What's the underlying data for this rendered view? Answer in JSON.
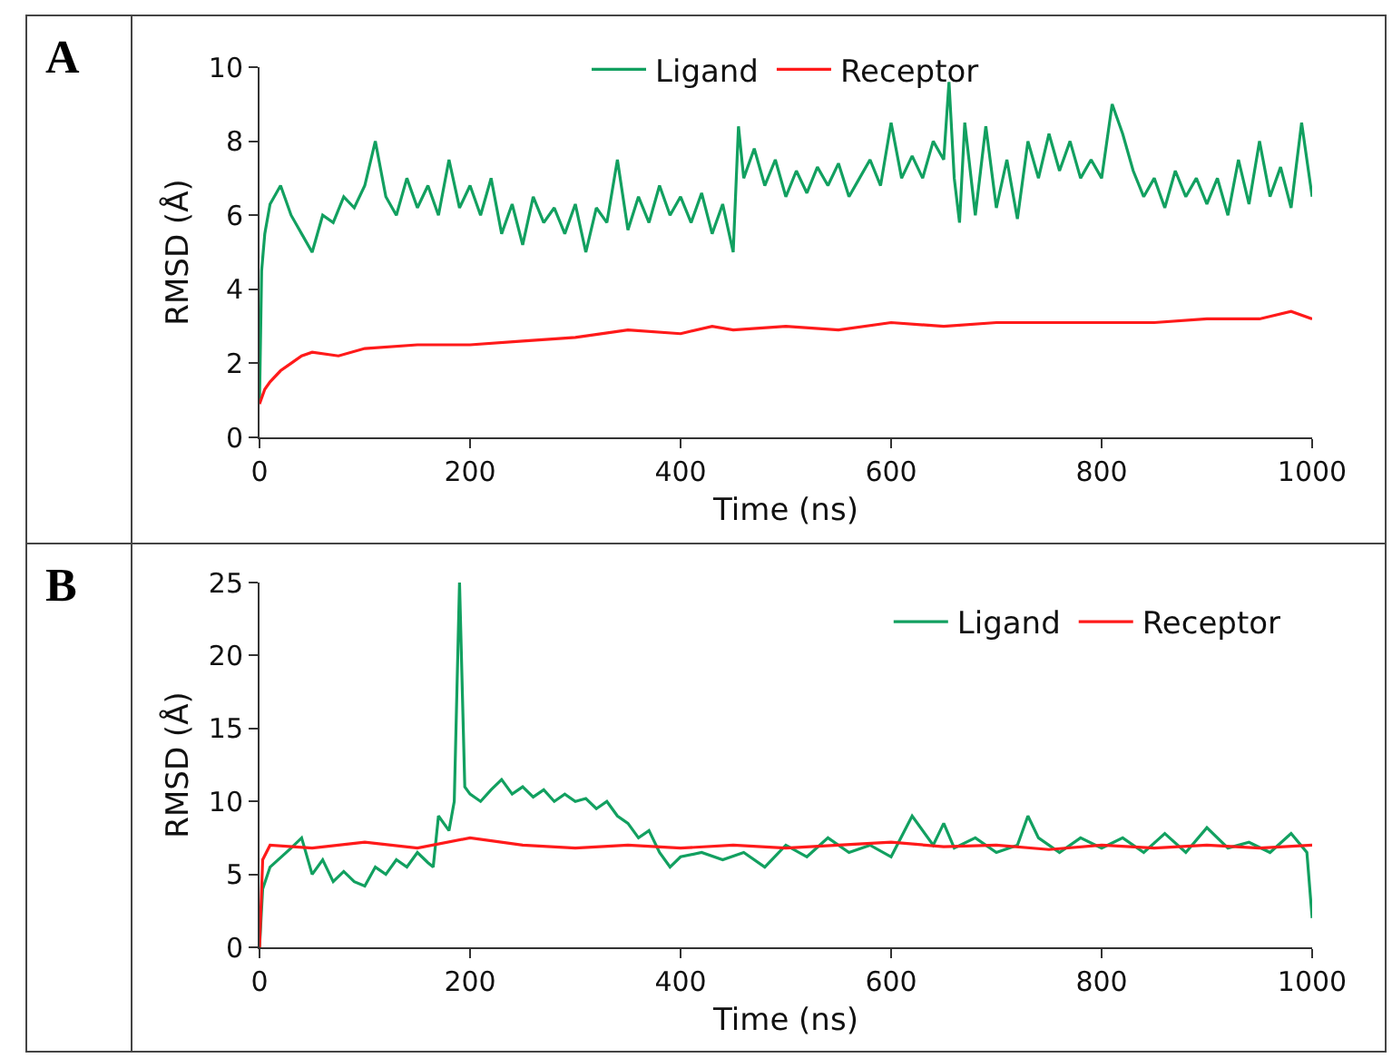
{
  "chart_data": [
    {
      "type": "line",
      "title": "A",
      "xlabel": "Time (ns)",
      "ylabel": "RMSD (Å)",
      "xlim": [
        0,
        1000
      ],
      "xticks": [
        0,
        200,
        400,
        600,
        800,
        1000
      ],
      "ylim": [
        0,
        10
      ],
      "yticks": [
        0,
        2,
        4,
        6,
        8,
        10
      ],
      "grid": false,
      "legend": "top",
      "marker": "none",
      "line_style": "solid",
      "series": [
        {
          "name": "Ligand",
          "color": "#12a060",
          "x": [
            0,
            2,
            5,
            10,
            20,
            30,
            40,
            50,
            60,
            70,
            80,
            90,
            100,
            110,
            120,
            130,
            140,
            150,
            160,
            170,
            180,
            190,
            200,
            210,
            220,
            230,
            240,
            250,
            260,
            270,
            280,
            290,
            300,
            310,
            320,
            330,
            340,
            350,
            360,
            370,
            380,
            390,
            400,
            410,
            420,
            430,
            440,
            450,
            455,
            460,
            470,
            480,
            490,
            500,
            510,
            520,
            530,
            540,
            550,
            560,
            570,
            580,
            590,
            600,
            610,
            620,
            630,
            640,
            650,
            655,
            660,
            665,
            670,
            680,
            690,
            700,
            710,
            720,
            730,
            740,
            750,
            760,
            770,
            780,
            790,
            800,
            810,
            820,
            830,
            840,
            850,
            860,
            870,
            880,
            890,
            900,
            910,
            920,
            930,
            940,
            950,
            960,
            970,
            980,
            990,
            1000
          ],
          "values": [
            1,
            4.5,
            5.5,
            6.3,
            6.8,
            6.0,
            5.5,
            5.0,
            6.0,
            5.8,
            6.5,
            6.2,
            6.8,
            8.0,
            6.5,
            6.0,
            7.0,
            6.2,
            6.8,
            6.0,
            7.5,
            6.2,
            6.8,
            6.0,
            7.0,
            5.5,
            6.3,
            5.2,
            6.5,
            5.8,
            6.2,
            5.5,
            6.3,
            5.0,
            6.2,
            5.8,
            7.5,
            5.6,
            6.5,
            5.8,
            6.8,
            6.0,
            6.5,
            5.8,
            6.6,
            5.5,
            6.3,
            5.0,
            8.4,
            7.0,
            7.8,
            6.8,
            7.5,
            6.5,
            7.2,
            6.6,
            7.3,
            6.8,
            7.4,
            6.5,
            7.0,
            7.5,
            6.8,
            8.5,
            7.0,
            7.6,
            7.0,
            8.0,
            7.5,
            9.6,
            7.0,
            5.8,
            8.5,
            6.0,
            8.4,
            6.2,
            7.5,
            5.9,
            8.0,
            7.0,
            8.2,
            7.2,
            8.0,
            7.0,
            7.5,
            7.0,
            9.0,
            8.2,
            7.2,
            6.5,
            7.0,
            6.2,
            7.2,
            6.5,
            7.0,
            6.3,
            7.0,
            6.0,
            7.5,
            6.3,
            8.0,
            6.5,
            7.3,
            6.2,
            8.5,
            6.5
          ]
        },
        {
          "name": "Receptor",
          "color": "#ff1a1a",
          "x": [
            0,
            5,
            10,
            20,
            30,
            40,
            50,
            75,
            100,
            150,
            200,
            250,
            300,
            350,
            400,
            430,
            450,
            500,
            550,
            600,
            650,
            700,
            750,
            800,
            850,
            900,
            950,
            980,
            1000
          ],
          "values": [
            0.9,
            1.3,
            1.5,
            1.8,
            2.0,
            2.2,
            2.3,
            2.2,
            2.4,
            2.5,
            2.5,
            2.6,
            2.7,
            2.9,
            2.8,
            3.0,
            2.9,
            3.0,
            2.9,
            3.1,
            3.0,
            3.1,
            3.1,
            3.1,
            3.1,
            3.2,
            3.2,
            3.4,
            3.2
          ]
        }
      ]
    },
    {
      "type": "line",
      "title": "B",
      "xlabel": "Time (ns)",
      "ylabel": "RMSD (Å)",
      "xlim": [
        0,
        1000
      ],
      "xticks": [
        0,
        200,
        400,
        600,
        800,
        1000
      ],
      "ylim": [
        0,
        25
      ],
      "yticks": [
        0,
        5,
        10,
        15,
        20,
        25
      ],
      "grid": false,
      "legend": "top right",
      "marker": "none",
      "line_style": "solid",
      "series": [
        {
          "name": "Ligand",
          "color": "#12a060",
          "x": [
            0,
            3,
            10,
            30,
            40,
            50,
            60,
            70,
            80,
            90,
            100,
            110,
            120,
            130,
            140,
            150,
            160,
            165,
            170,
            180,
            185,
            190,
            195,
            200,
            210,
            220,
            230,
            240,
            250,
            260,
            270,
            280,
            290,
            300,
            310,
            320,
            330,
            340,
            350,
            360,
            370,
            380,
            390,
            400,
            420,
            440,
            460,
            480,
            500,
            520,
            540,
            560,
            580,
            600,
            620,
            640,
            650,
            660,
            680,
            700,
            720,
            730,
            740,
            760,
            780,
            800,
            820,
            840,
            860,
            880,
            900,
            920,
            940,
            960,
            980,
            995,
            1000
          ],
          "values": [
            0,
            4,
            5.5,
            6.8,
            7.5,
            5,
            6,
            4.5,
            5.2,
            4.5,
            4.2,
            5.5,
            5,
            6,
            5.5,
            6.5,
            5.8,
            5.5,
            9,
            8,
            10,
            25,
            11,
            10.5,
            10,
            10.8,
            11.5,
            10.5,
            11,
            10.3,
            10.8,
            10,
            10.5,
            10,
            10.2,
            9.5,
            10,
            9,
            8.5,
            7.5,
            8,
            6.5,
            5.5,
            6.2,
            6.5,
            6,
            6.5,
            5.5,
            7,
            6.2,
            7.5,
            6.5,
            7,
            6.2,
            9,
            7,
            8.5,
            6.8,
            7.5,
            6.5,
            7,
            9,
            7.5,
            6.5,
            7.5,
            6.8,
            7.5,
            6.5,
            7.8,
            6.5,
            8.2,
            6.8,
            7.2,
            6.5,
            7.8,
            6.5,
            2
          ]
        },
        {
          "name": "Receptor",
          "color": "#ff1a1a",
          "x": [
            0,
            3,
            10,
            50,
            100,
            150,
            200,
            250,
            300,
            350,
            400,
            450,
            500,
            550,
            600,
            650,
            700,
            750,
            800,
            850,
            900,
            950,
            1000
          ],
          "values": [
            0,
            6,
            7,
            6.8,
            7.2,
            6.8,
            7.5,
            7,
            6.8,
            7,
            6.8,
            7,
            6.8,
            7,
            7.2,
            6.9,
            7,
            6.7,
            7,
            6.8,
            7,
            6.8,
            7
          ]
        }
      ]
    }
  ]
}
